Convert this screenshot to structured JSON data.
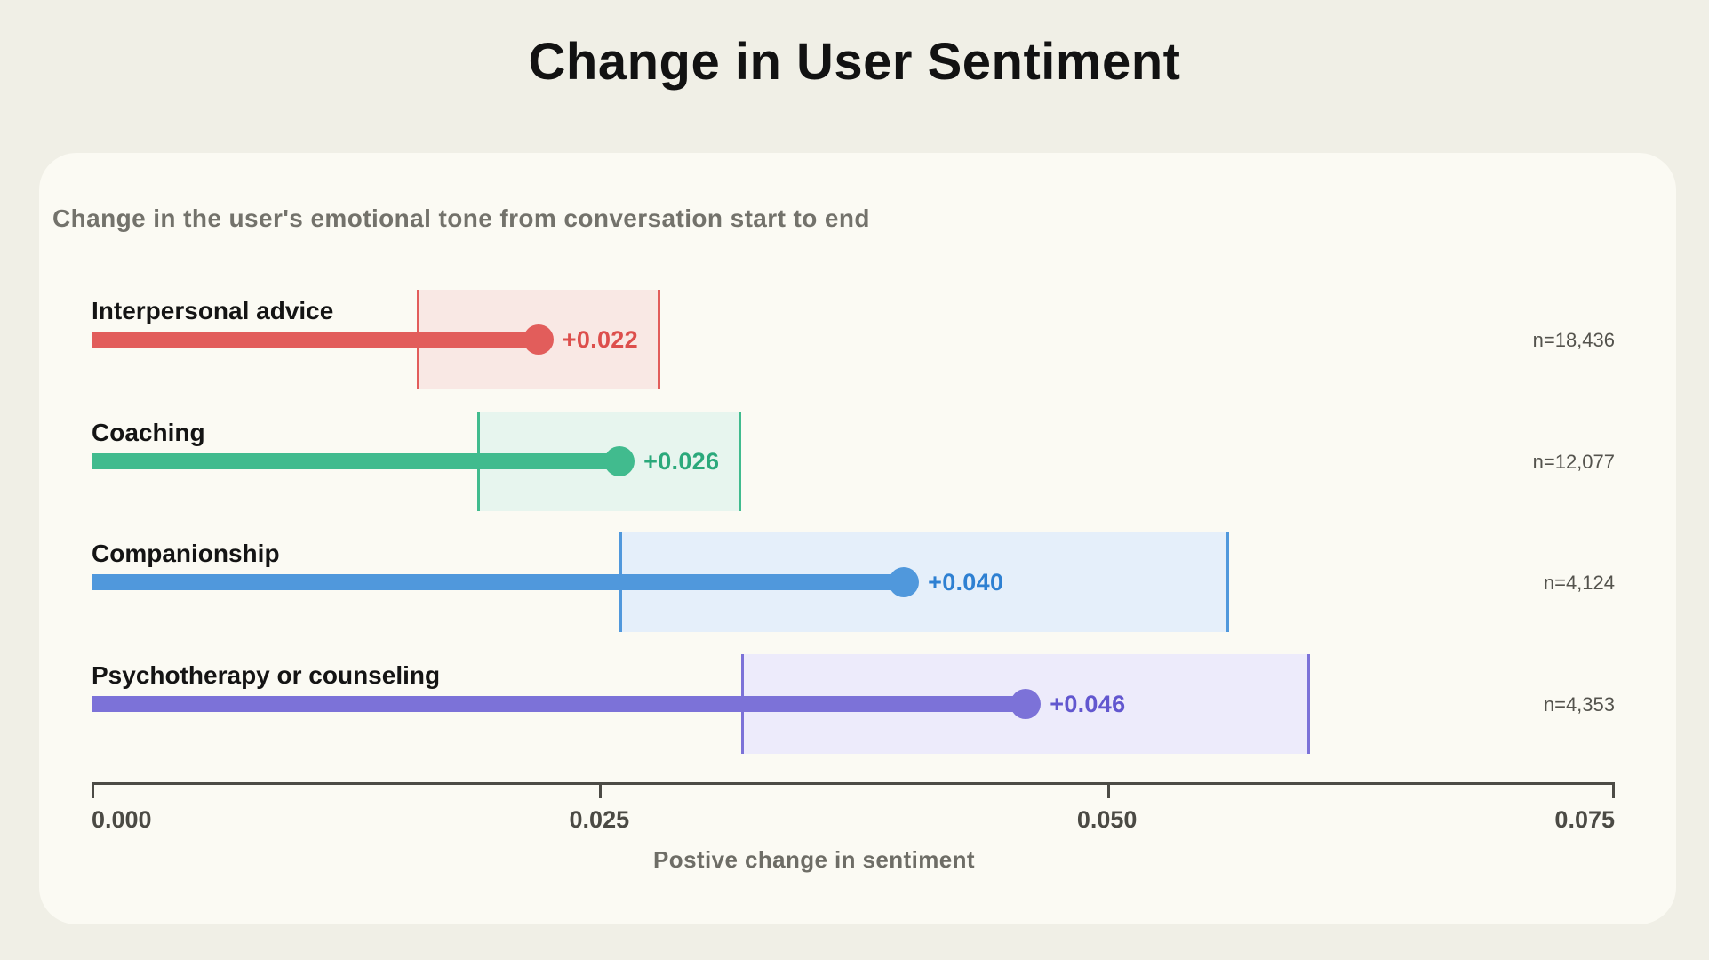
{
  "page": {
    "background_color": "#f0efe6",
    "card_color": "#fbfaf3"
  },
  "chart_data": {
    "type": "bar",
    "variant": "horizontal-lollipop-with-confidence-bands",
    "title": "Change in User Sentiment",
    "subtitle": "Change in the user's emotional tone from conversation start to end",
    "xlabel": "Postive change in sentiment",
    "ylabel": "",
    "xlim": [
      0,
      0.075
    ],
    "x_ticks": [
      {
        "label": "0.000",
        "value": 0.0
      },
      {
        "label": "0.025",
        "value": 0.025
      },
      {
        "label": "0.050",
        "value": 0.05
      },
      {
        "label": "0.075",
        "value": 0.075
      }
    ],
    "grid": false,
    "legend": "none",
    "categories": [
      "Interpersonal advice",
      "Coaching",
      "Companionship",
      "Psychotherapy or counseling"
    ],
    "series": [
      {
        "name": "Interpersonal advice",
        "value": 0.022,
        "value_label": "+0.022",
        "ci_low": 0.016,
        "ci_high": 0.028,
        "n_label": "n=18,436",
        "bar_color": "#e25d5b",
        "text_color": "#dd4f4c",
        "band_fill": "#f9e8e4"
      },
      {
        "name": "Coaching",
        "value": 0.026,
        "value_label": "+0.026",
        "ci_low": 0.019,
        "ci_high": 0.032,
        "n_label": "n=12,077",
        "bar_color": "#41bb8e",
        "text_color": "#2ba97b",
        "band_fill": "#e7f5ee"
      },
      {
        "name": "Companionship",
        "value": 0.04,
        "value_label": "+0.040",
        "ci_low": 0.026,
        "ci_high": 0.056,
        "n_label": "n=4,124",
        "bar_color": "#5098dc",
        "text_color": "#2e80d2",
        "band_fill": "#e5effa"
      },
      {
        "name": "Psychotherapy or counseling",
        "value": 0.046,
        "value_label": "+0.046",
        "ci_low": 0.032,
        "ci_high": 0.06,
        "n_label": "n=4,353",
        "bar_color": "#7c72d8",
        "text_color": "#6257cf",
        "band_fill": "#edebfb"
      }
    ]
  }
}
